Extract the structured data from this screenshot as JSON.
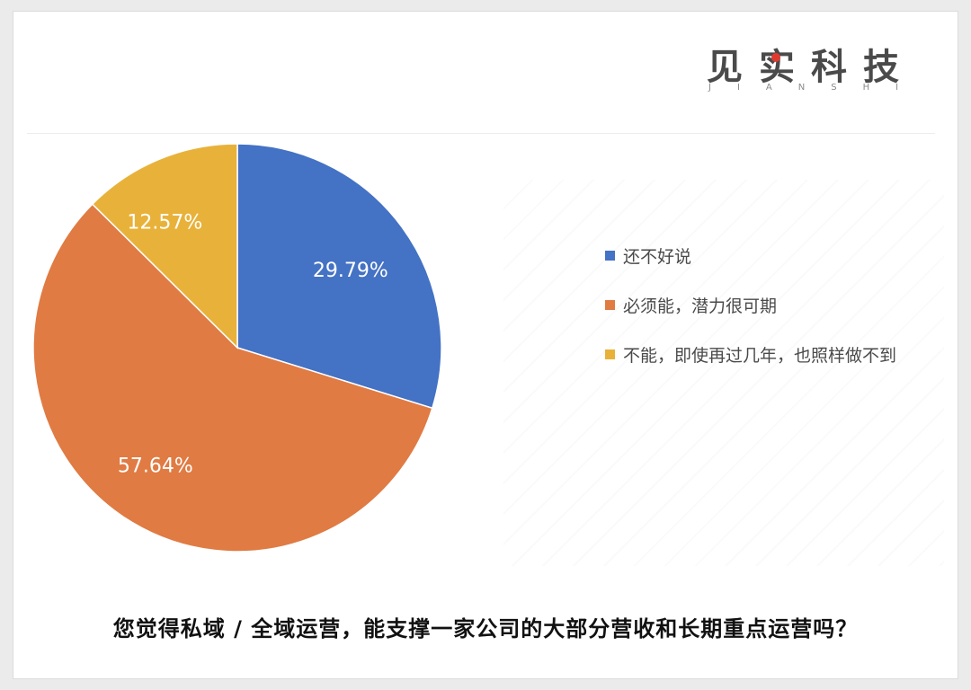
{
  "brand": {
    "name": "见实科技",
    "subtitle": "JIANSHI"
  },
  "chart_data": {
    "type": "pie",
    "title": "您觉得私域 / 全域运营，能支撑一家公司的大部分营收和长期重点运营吗？",
    "slices": [
      {
        "label": "还不好说",
        "value": 29.79,
        "value_label": "29.79%",
        "color": "#4472c4"
      },
      {
        "label": "必须能，潜力很可期",
        "value": 57.64,
        "value_label": "57.64%",
        "color": "#e07b43"
      },
      {
        "label": "不能，即使再过几年，也照样做不到",
        "value": 12.57,
        "value_label": "12.57%",
        "color": "#e8b23a"
      }
    ],
    "start_angle": "12 o'clock",
    "direction": "clockwise",
    "legend_position": "right"
  }
}
